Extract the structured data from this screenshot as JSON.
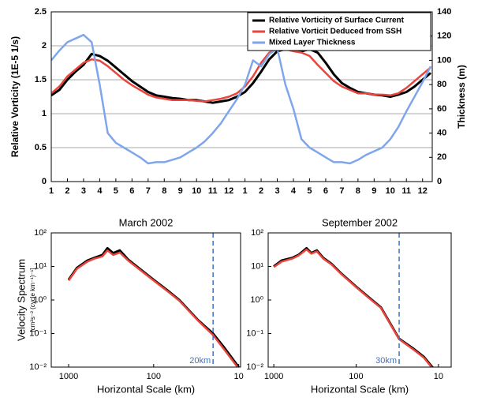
{
  "chart_data": [
    {
      "type": "line",
      "ylabel": "Relative Vorticity (1E-5 1/s)",
      "y2label": "Thickness (m)",
      "x": [
        0,
        0.5,
        1,
        1.5,
        2,
        2.5,
        3,
        3.5,
        4,
        4.5,
        5,
        5.5,
        6,
        6.5,
        7,
        7.5,
        8,
        8.5,
        9,
        9.5,
        10,
        10.5,
        11,
        11.5,
        12,
        12.5,
        13,
        13.5,
        14,
        14.5,
        15,
        15.5,
        16,
        16.5,
        17,
        17.5,
        18,
        18.5,
        19,
        19.5,
        20,
        20.5,
        21,
        21.5,
        22,
        22.5,
        23,
        23.5
      ],
      "xlim": [
        0,
        23.6
      ],
      "xticks": [
        {
          "value": 0,
          "label": "1"
        },
        {
          "value": 1,
          "label": "2"
        },
        {
          "value": 2,
          "label": "3"
        },
        {
          "value": 3,
          "label": "4"
        },
        {
          "value": 4,
          "label": "5"
        },
        {
          "value": 5,
          "label": "6"
        },
        {
          "value": 6,
          "label": "7"
        },
        {
          "value": 7,
          "label": "8"
        },
        {
          "value": 8,
          "label": "9"
        },
        {
          "value": 9,
          "label": "10"
        },
        {
          "value": 10,
          "label": "11"
        },
        {
          "value": 11,
          "label": "12"
        },
        {
          "value": 12,
          "label": "1"
        },
        {
          "value": 13,
          "label": "2"
        },
        {
          "value": 14,
          "label": "3"
        },
        {
          "value": 15,
          "label": "4"
        },
        {
          "value": 16,
          "label": "5"
        },
        {
          "value": 17,
          "label": "6"
        },
        {
          "value": 18,
          "label": "7"
        },
        {
          "value": 19,
          "label": "8"
        },
        {
          "value": 20,
          "label": "9"
        },
        {
          "value": 21,
          "label": "10"
        },
        {
          "value": 22,
          "label": "11"
        },
        {
          "value": 23,
          "label": "12"
        }
      ],
      "ylim": [
        0,
        2.5
      ],
      "yticks": [
        0,
        0.5,
        1,
        1.5,
        2,
        2.5
      ],
      "y2lim": [
        0,
        140
      ],
      "y2ticks": [
        0,
        20,
        40,
        60,
        80,
        100,
        120,
        140
      ],
      "grid": true,
      "legend": "upper right",
      "series": [
        {
          "name": "Relative Vorticity of Surface Current",
          "color": "#000000",
          "values": [
            1.27,
            1.35,
            1.5,
            1.62,
            1.72,
            1.88,
            1.85,
            1.78,
            1.68,
            1.58,
            1.48,
            1.4,
            1.32,
            1.27,
            1.25,
            1.23,
            1.22,
            1.2,
            1.2,
            1.18,
            1.16,
            1.18,
            1.2,
            1.25,
            1.32,
            1.45,
            1.62,
            1.8,
            1.92,
            1.95,
            1.95,
            1.92,
            1.95,
            1.9,
            1.75,
            1.58,
            1.45,
            1.38,
            1.32,
            1.3,
            1.28,
            1.27,
            1.25,
            1.28,
            1.32,
            1.4,
            1.5,
            1.6
          ]
        },
        {
          "name": "Relative Vorticit Deduced from SSH",
          "color": "#e8453c",
          "values": [
            1.3,
            1.4,
            1.55,
            1.65,
            1.75,
            1.8,
            1.78,
            1.7,
            1.6,
            1.5,
            1.42,
            1.35,
            1.28,
            1.24,
            1.22,
            1.2,
            1.2,
            1.2,
            1.19,
            1.18,
            1.2,
            1.22,
            1.25,
            1.3,
            1.4,
            1.55,
            1.75,
            1.9,
            1.95,
            1.95,
            1.92,
            1.9,
            1.85,
            1.72,
            1.6,
            1.48,
            1.4,
            1.35,
            1.3,
            1.3,
            1.28,
            1.28,
            1.27,
            1.3,
            1.38,
            1.48,
            1.58,
            1.68
          ]
        },
        {
          "name": "Mixed Layer Thickness",
          "color": "#7fa6ec",
          "axis": "y2",
          "values": [
            100,
            108,
            115,
            118,
            121,
            115,
            80,
            40,
            32,
            28,
            24,
            20,
            15,
            16,
            16,
            18,
            20,
            24,
            28,
            33,
            40,
            48,
            58,
            68,
            80,
            100,
            95,
            105,
            110,
            80,
            60,
            35,
            28,
            24,
            20,
            16,
            16,
            15,
            18,
            22,
            25,
            28,
            35,
            45,
            58,
            70,
            82,
            95
          ]
        }
      ]
    },
    {
      "type": "line",
      "title": "March 2002",
      "ylabel": "Velocity Spectrum",
      "ylabel_units": "[cm²s⁻² (cycle km⁻¹)⁻¹]",
      "xlabel": "Horizontal Scale  (km)",
      "xlog": true,
      "ylog": true,
      "x": [
        1000,
        800,
        600,
        500,
        400,
        350,
        300,
        250,
        200,
        150,
        100,
        70,
        50,
        30,
        20,
        15,
        10
      ],
      "xlim": [
        1600,
        9.5
      ],
      "xticks": [
        1000,
        100,
        10
      ],
      "ylim": [
        0.01,
        100
      ],
      "yticks": [
        {
          "value": 0.01,
          "label": "10⁻²"
        },
        {
          "value": 0.1,
          "label": "10⁻¹"
        },
        {
          "value": 1,
          "label": "10⁰"
        },
        {
          "value": 10,
          "label": "10¹"
        },
        {
          "value": 100,
          "label": "10²"
        }
      ],
      "marker": {
        "value": 20,
        "label": "20km"
      },
      "series": [
        {
          "color": "#000000",
          "values": [
            4,
            9,
            15,
            18,
            22,
            35,
            25,
            30,
            16,
            9,
            4,
            2,
            1,
            0.25,
            0.1,
            0.04,
            0.01
          ]
        },
        {
          "color": "#e8453c",
          "values": [
            3.8,
            8.5,
            14,
            17,
            20,
            30,
            22,
            26,
            15,
            8.5,
            3.8,
            1.9,
            0.95,
            0.24,
            0.09,
            0.035,
            0.009
          ]
        }
      ]
    },
    {
      "type": "line",
      "title": "September 2002",
      "xlabel": "Horizontal Scale  (km)",
      "xlog": true,
      "ylog": true,
      "x": [
        1000,
        800,
        600,
        500,
        400,
        350,
        300,
        250,
        200,
        150,
        100,
        70,
        50,
        30,
        20,
        15,
        10
      ],
      "xlim": [
        1170,
        7
      ],
      "xticks": [
        1000,
        100,
        10
      ],
      "ylim": [
        0.01,
        100
      ],
      "yticks": [
        {
          "value": 0.01,
          "label": "10⁻²"
        },
        {
          "value": 0.1,
          "label": "10⁻¹"
        },
        {
          "value": 1,
          "label": "10⁰"
        },
        {
          "value": 10,
          "label": "10¹"
        },
        {
          "value": 100,
          "label": "10²"
        }
      ],
      "marker": {
        "value": 30,
        "label": "30km"
      },
      "series": [
        {
          "color": "#000000",
          "values": [
            10,
            15,
            18,
            22,
            35,
            25,
            30,
            18,
            12,
            6,
            2.5,
            1.2,
            0.6,
            0.07,
            0.035,
            0.02,
            0.006
          ]
        },
        {
          "color": "#e8453c",
          "values": [
            9.5,
            14,
            17,
            21,
            32,
            24,
            28,
            17,
            11.5,
            5.8,
            2.4,
            1.15,
            0.58,
            0.068,
            0.033,
            0.019,
            0.0055
          ]
        }
      ]
    }
  ]
}
